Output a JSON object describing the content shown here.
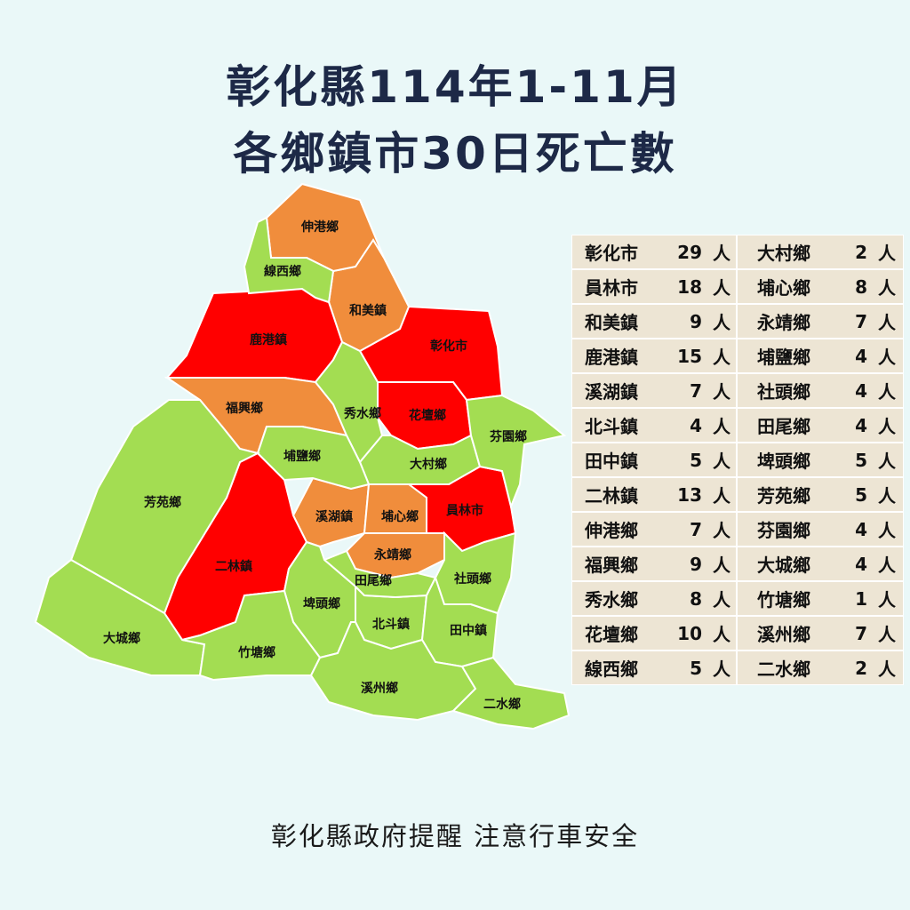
{
  "title": {
    "line1": "彰化縣114年1-11月",
    "line2": "各鄉鎮市30日死亡數"
  },
  "colors": {
    "high": "#ff0000",
    "medium": "#f08d3c",
    "low": "#a3dd52",
    "title": "#1d2947",
    "table_cell": "#ede5d4"
  },
  "regions": [
    {
      "name": "彰化市",
      "deaths": 29,
      "level": "high"
    },
    {
      "name": "員林市",
      "deaths": 18,
      "level": "high"
    },
    {
      "name": "和美鎮",
      "deaths": 9,
      "level": "medium"
    },
    {
      "name": "鹿港鎮",
      "deaths": 15,
      "level": "high"
    },
    {
      "name": "溪湖鎮",
      "deaths": 7,
      "level": "medium"
    },
    {
      "name": "北斗鎮",
      "deaths": 4,
      "level": "low"
    },
    {
      "name": "田中鎮",
      "deaths": 5,
      "level": "low"
    },
    {
      "name": "二林鎮",
      "deaths": 13,
      "level": "high"
    },
    {
      "name": "伸港鄉",
      "deaths": 7,
      "level": "medium"
    },
    {
      "name": "福興鄉",
      "deaths": 9,
      "level": "medium"
    },
    {
      "name": "秀水鄉",
      "deaths": 8,
      "level": "low"
    },
    {
      "name": "花壇鄉",
      "deaths": 10,
      "level": "high"
    },
    {
      "name": "線西鄉",
      "deaths": 5,
      "level": "low"
    },
    {
      "name": "大村鄉",
      "deaths": 2,
      "level": "low"
    },
    {
      "name": "埔心鄉",
      "deaths": 8,
      "level": "medium"
    },
    {
      "name": "永靖鄉",
      "deaths": 7,
      "level": "medium"
    },
    {
      "name": "埔鹽鄉",
      "deaths": 4,
      "level": "low"
    },
    {
      "name": "社頭鄉",
      "deaths": 4,
      "level": "low"
    },
    {
      "name": "田尾鄉",
      "deaths": 4,
      "level": "low"
    },
    {
      "name": "埤頭鄉",
      "deaths": 5,
      "level": "low"
    },
    {
      "name": "芳苑鄉",
      "deaths": 5,
      "level": "low"
    },
    {
      "name": "芬園鄉",
      "deaths": 4,
      "level": "low"
    },
    {
      "name": "大城鄉",
      "deaths": 4,
      "level": "low"
    },
    {
      "name": "竹塘鄉",
      "deaths": 1,
      "level": "low"
    },
    {
      "name": "溪州鄉",
      "deaths": 7,
      "level": "low"
    },
    {
      "name": "二水鄉",
      "deaths": 2,
      "level": "low"
    }
  ],
  "unit": "人",
  "footer": "彰化縣政府提醒 注意行車安全"
}
